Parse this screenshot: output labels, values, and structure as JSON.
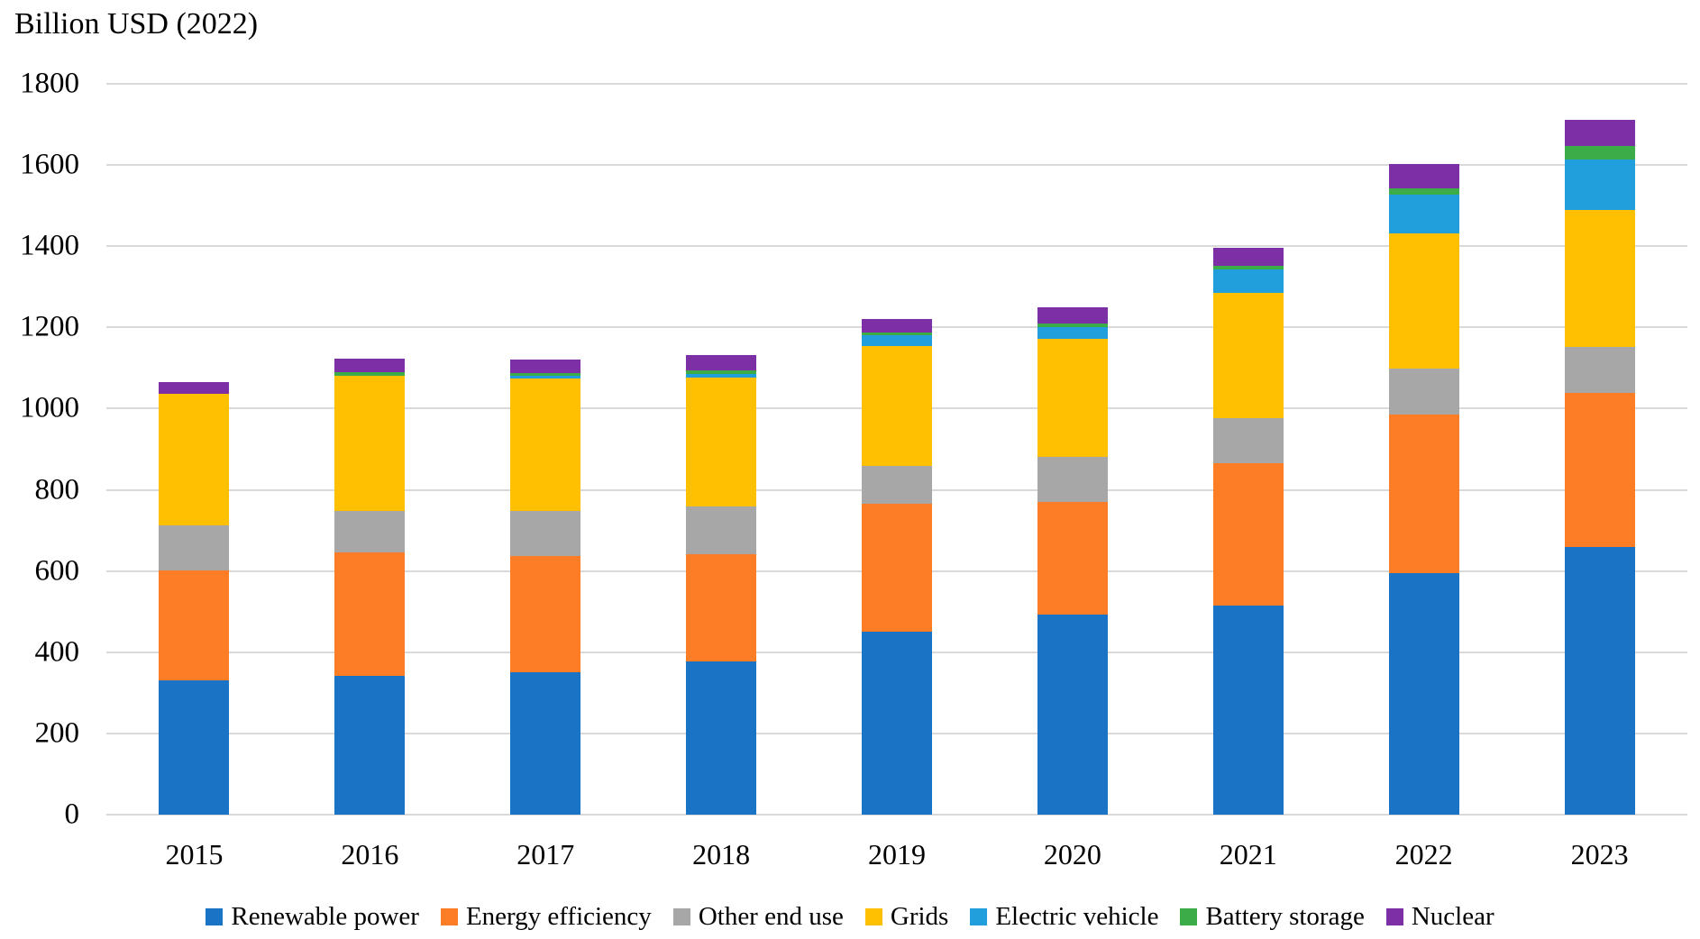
{
  "title": "Billion USD (2022)",
  "chart_data": {
    "type": "bar",
    "stacked": true,
    "title": "Billion USD (2022)",
    "xlabel": "",
    "ylabel": "Billion USD (2022)",
    "ylim": [
      0,
      1800
    ],
    "ytick_step": 200,
    "yticks": [
      0,
      200,
      400,
      600,
      800,
      1000,
      1200,
      1400,
      1600,
      1800
    ],
    "grid": true,
    "gridline_color": "#D9D9D9",
    "text_color": "#000000",
    "background_color": "#FFFFFF",
    "legend_position": "bottom",
    "categories": [
      "2015",
      "2016",
      "2017",
      "2018",
      "2019",
      "2020",
      "2021",
      "2022",
      "2023"
    ],
    "series": [
      {
        "name": "Renewable power",
        "color": "#1A73C5",
        "values": [
          331,
          341,
          350,
          377,
          450,
          493,
          516,
          595,
          660
        ]
      },
      {
        "name": "Energy efficiency",
        "color": "#FD7D27",
        "values": [
          270,
          305,
          288,
          264,
          315,
          278,
          349,
          390,
          378
        ]
      },
      {
        "name": "Other end use",
        "color": "#A7A7A7",
        "values": [
          112,
          101,
          110,
          119,
          95,
          110,
          112,
          114,
          115
        ]
      },
      {
        "name": "Grids",
        "color": "#FFC002",
        "values": [
          323,
          335,
          326,
          316,
          294,
          292,
          308,
          333,
          336
        ]
      },
      {
        "name": "Electric vehicle",
        "color": "#219FDC",
        "values": [
          0,
          0,
          6,
          9,
          26,
          27,
          57,
          95,
          124
        ]
      },
      {
        "name": "Battery storage",
        "color": "#3CAC48",
        "values": [
          0,
          7,
          7,
          9,
          7,
          9,
          9,
          16,
          35
        ]
      },
      {
        "name": "Nuclear",
        "color": "#7D2FA5",
        "values": [
          30,
          34,
          33,
          39,
          34,
          41,
          45,
          60,
          63
        ]
      }
    ],
    "totals": [
      1066,
      1123,
      1120,
      1133,
      1221,
      1250,
      1396,
      1603,
      1711
    ]
  }
}
